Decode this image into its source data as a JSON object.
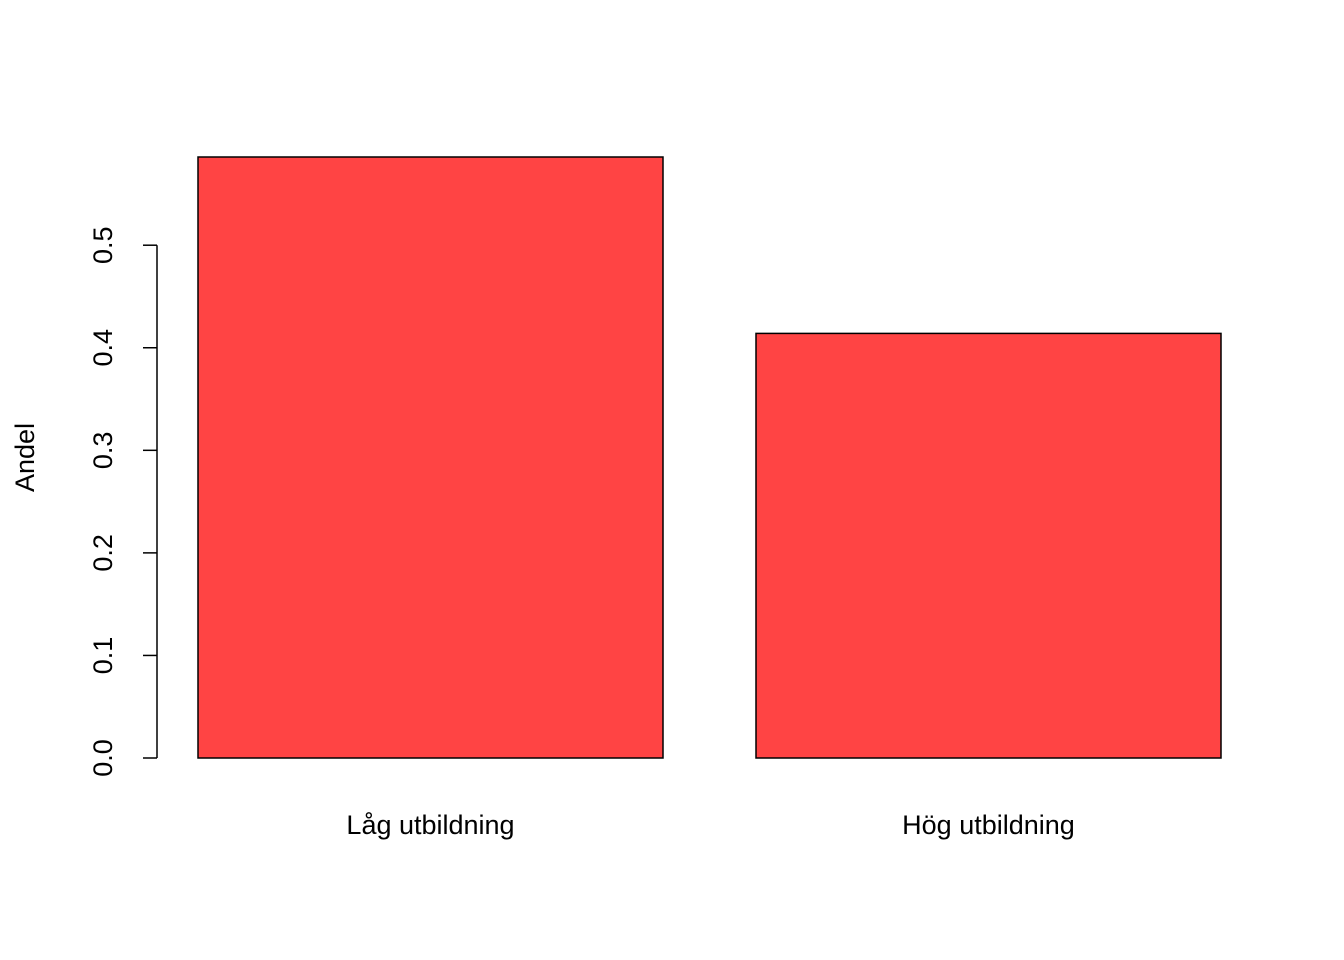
{
  "chart_data": {
    "type": "bar",
    "title": "",
    "xlabel": "",
    "ylabel": "Andel",
    "categories": [
      "Låg utbildning",
      "Hög utbildning"
    ],
    "values": [
      0.586,
      0.414
    ],
    "ylim": [
      0,
      0.586
    ],
    "yticks": [
      0.0,
      0.1,
      0.2,
      0.3,
      0.4,
      0.5
    ],
    "ytick_labels": [
      "0.0",
      "0.1",
      "0.2",
      "0.3",
      "0.4",
      "0.5"
    ],
    "bar_color": "#ff4444",
    "grid": false,
    "legend": "none"
  }
}
